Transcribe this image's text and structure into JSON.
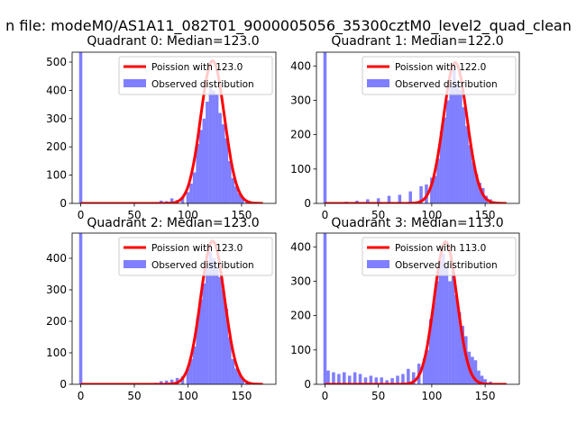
{
  "figure": {
    "suptitle": "n file: modeM0/AS1A11_082T01_9000005056_35300cztM0_level2_quad_clean"
  },
  "chart_data": [
    {
      "type": "bar",
      "title": "Quadrant 0: Median=123.0",
      "median": 123.0,
      "xlim": [
        -8,
        182
      ],
      "ylim": [
        0,
        535
      ],
      "xticks": [
        0,
        50,
        100,
        150
      ],
      "yticks": [
        0,
        100,
        200,
        300,
        400,
        500
      ],
      "bins": [
        {
          "x": 0,
          "y": 535
        },
        {
          "x": 70,
          "y": 5
        },
        {
          "x": 75,
          "y": 10
        },
        {
          "x": 80,
          "y": 8
        },
        {
          "x": 85,
          "y": 18
        },
        {
          "x": 90,
          "y": 12
        },
        {
          "x": 95,
          "y": 22
        },
        {
          "x": 100,
          "y": 40
        },
        {
          "x": 103,
          "y": 70
        },
        {
          "x": 106,
          "y": 110
        },
        {
          "x": 109,
          "y": 210
        },
        {
          "x": 112,
          "y": 260
        },
        {
          "x": 115,
          "y": 300
        },
        {
          "x": 118,
          "y": 360
        },
        {
          "x": 121,
          "y": 410
        },
        {
          "x": 124,
          "y": 400
        },
        {
          "x": 127,
          "y": 385
        },
        {
          "x": 130,
          "y": 320
        },
        {
          "x": 133,
          "y": 280
        },
        {
          "x": 136,
          "y": 230
        },
        {
          "x": 139,
          "y": 150
        },
        {
          "x": 142,
          "y": 90
        },
        {
          "x": 145,
          "y": 60
        },
        {
          "x": 148,
          "y": 35
        },
        {
          "x": 151,
          "y": 20
        },
        {
          "x": 155,
          "y": 8
        },
        {
          "x": 160,
          "y": 4
        }
      ],
      "curve": {
        "mu": 123.0,
        "peak": 505
      },
      "legend": {
        "line": "Poission with 123.0",
        "bars": "Observed distribution"
      }
    },
    {
      "type": "bar",
      "title": "Quadrant 1: Median=122.0",
      "median": 122.0,
      "xlim": [
        -8,
        182
      ],
      "ylim": [
        0,
        440
      ],
      "xticks": [
        0,
        50,
        100,
        150
      ],
      "yticks": [
        0,
        100,
        200,
        300,
        400
      ],
      "bins": [
        {
          "x": 0,
          "y": 440
        },
        {
          "x": 20,
          "y": 5
        },
        {
          "x": 30,
          "y": 8
        },
        {
          "x": 40,
          "y": 12
        },
        {
          "x": 50,
          "y": 15
        },
        {
          "x": 60,
          "y": 22
        },
        {
          "x": 70,
          "y": 25
        },
        {
          "x": 80,
          "y": 35
        },
        {
          "x": 90,
          "y": 50
        },
        {
          "x": 95,
          "y": 55
        },
        {
          "x": 100,
          "y": 75
        },
        {
          "x": 103,
          "y": 80
        },
        {
          "x": 106,
          "y": 130
        },
        {
          "x": 109,
          "y": 210
        },
        {
          "x": 112,
          "y": 250
        },
        {
          "x": 115,
          "y": 300
        },
        {
          "x": 118,
          "y": 340
        },
        {
          "x": 121,
          "y": 390
        },
        {
          "x": 124,
          "y": 350
        },
        {
          "x": 127,
          "y": 330
        },
        {
          "x": 130,
          "y": 280
        },
        {
          "x": 133,
          "y": 225
        },
        {
          "x": 136,
          "y": 170
        },
        {
          "x": 139,
          "y": 120
        },
        {
          "x": 142,
          "y": 85
        },
        {
          "x": 145,
          "y": 60
        },
        {
          "x": 148,
          "y": 45
        },
        {
          "x": 151,
          "y": 22
        },
        {
          "x": 155,
          "y": 12
        },
        {
          "x": 160,
          "y": 5
        }
      ],
      "curve": {
        "mu": 122.0,
        "peak": 410
      },
      "legend": {
        "line": "Poission with 122.0",
        "bars": "Observed distribution"
      }
    },
    {
      "type": "bar",
      "title": "Quadrant 2: Median=123.0",
      "median": 123.0,
      "xlim": [
        -8,
        182
      ],
      "ylim": [
        0,
        480
      ],
      "xticks": [
        0,
        50,
        100,
        150
      ],
      "yticks": [
        0,
        100,
        200,
        300,
        400
      ],
      "bins": [
        {
          "x": 0,
          "y": 480
        },
        {
          "x": 70,
          "y": 5
        },
        {
          "x": 75,
          "y": 10
        },
        {
          "x": 80,
          "y": 12
        },
        {
          "x": 85,
          "y": 15
        },
        {
          "x": 90,
          "y": 20
        },
        {
          "x": 95,
          "y": 25
        },
        {
          "x": 100,
          "y": 50
        },
        {
          "x": 103,
          "y": 80
        },
        {
          "x": 106,
          "y": 120
        },
        {
          "x": 109,
          "y": 210
        },
        {
          "x": 112,
          "y": 270
        },
        {
          "x": 115,
          "y": 320
        },
        {
          "x": 118,
          "y": 370
        },
        {
          "x": 121,
          "y": 420
        },
        {
          "x": 124,
          "y": 400
        },
        {
          "x": 127,
          "y": 370
        },
        {
          "x": 130,
          "y": 340
        },
        {
          "x": 133,
          "y": 300
        },
        {
          "x": 136,
          "y": 240
        },
        {
          "x": 139,
          "y": 150
        },
        {
          "x": 142,
          "y": 80
        },
        {
          "x": 145,
          "y": 50
        },
        {
          "x": 148,
          "y": 35
        },
        {
          "x": 151,
          "y": 20
        },
        {
          "x": 155,
          "y": 10
        },
        {
          "x": 160,
          "y": 5
        }
      ],
      "curve": {
        "mu": 123.0,
        "peak": 455
      },
      "legend": {
        "line": "Poission with 123.0",
        "bars": "Observed distribution"
      }
    },
    {
      "type": "bar",
      "title": "Quadrant 3: Median=113.0",
      "median": 113.0,
      "xlim": [
        -8,
        182
      ],
      "ylim": [
        0,
        440
      ],
      "xticks": [
        0,
        50,
        100,
        150
      ],
      "yticks": [
        0,
        100,
        200,
        300,
        400
      ],
      "bins": [
        {
          "x": 0,
          "y": 440
        },
        {
          "x": 3,
          "y": 40
        },
        {
          "x": 8,
          "y": 35
        },
        {
          "x": 13,
          "y": 30
        },
        {
          "x": 18,
          "y": 35
        },
        {
          "x": 23,
          "y": 25
        },
        {
          "x": 28,
          "y": 35
        },
        {
          "x": 33,
          "y": 30
        },
        {
          "x": 38,
          "y": 20
        },
        {
          "x": 43,
          "y": 25
        },
        {
          "x": 48,
          "y": 20
        },
        {
          "x": 53,
          "y": 20
        },
        {
          "x": 58,
          "y": 12
        },
        {
          "x": 63,
          "y": 18
        },
        {
          "x": 68,
          "y": 25
        },
        {
          "x": 73,
          "y": 30
        },
        {
          "x": 78,
          "y": 45
        },
        {
          "x": 83,
          "y": 35
        },
        {
          "x": 88,
          "y": 60
        },
        {
          "x": 93,
          "y": 75
        },
        {
          "x": 96,
          "y": 100
        },
        {
          "x": 99,
          "y": 190
        },
        {
          "x": 102,
          "y": 240
        },
        {
          "x": 105,
          "y": 300
        },
        {
          "x": 108,
          "y": 360
        },
        {
          "x": 111,
          "y": 380
        },
        {
          "x": 114,
          "y": 340
        },
        {
          "x": 117,
          "y": 300
        },
        {
          "x": 120,
          "y": 330
        },
        {
          "x": 123,
          "y": 260
        },
        {
          "x": 126,
          "y": 210
        },
        {
          "x": 129,
          "y": 170
        },
        {
          "x": 132,
          "y": 140
        },
        {
          "x": 135,
          "y": 95
        },
        {
          "x": 138,
          "y": 80
        },
        {
          "x": 141,
          "y": 70
        },
        {
          "x": 144,
          "y": 40
        },
        {
          "x": 147,
          "y": 25
        },
        {
          "x": 150,
          "y": 15
        },
        {
          "x": 155,
          "y": 8
        },
        {
          "x": 160,
          "y": 4
        }
      ],
      "curve": {
        "mu": 113.0,
        "peak": 415
      },
      "legend": {
        "line": "Poission with 113.0",
        "bars": "Observed distribution"
      }
    }
  ]
}
